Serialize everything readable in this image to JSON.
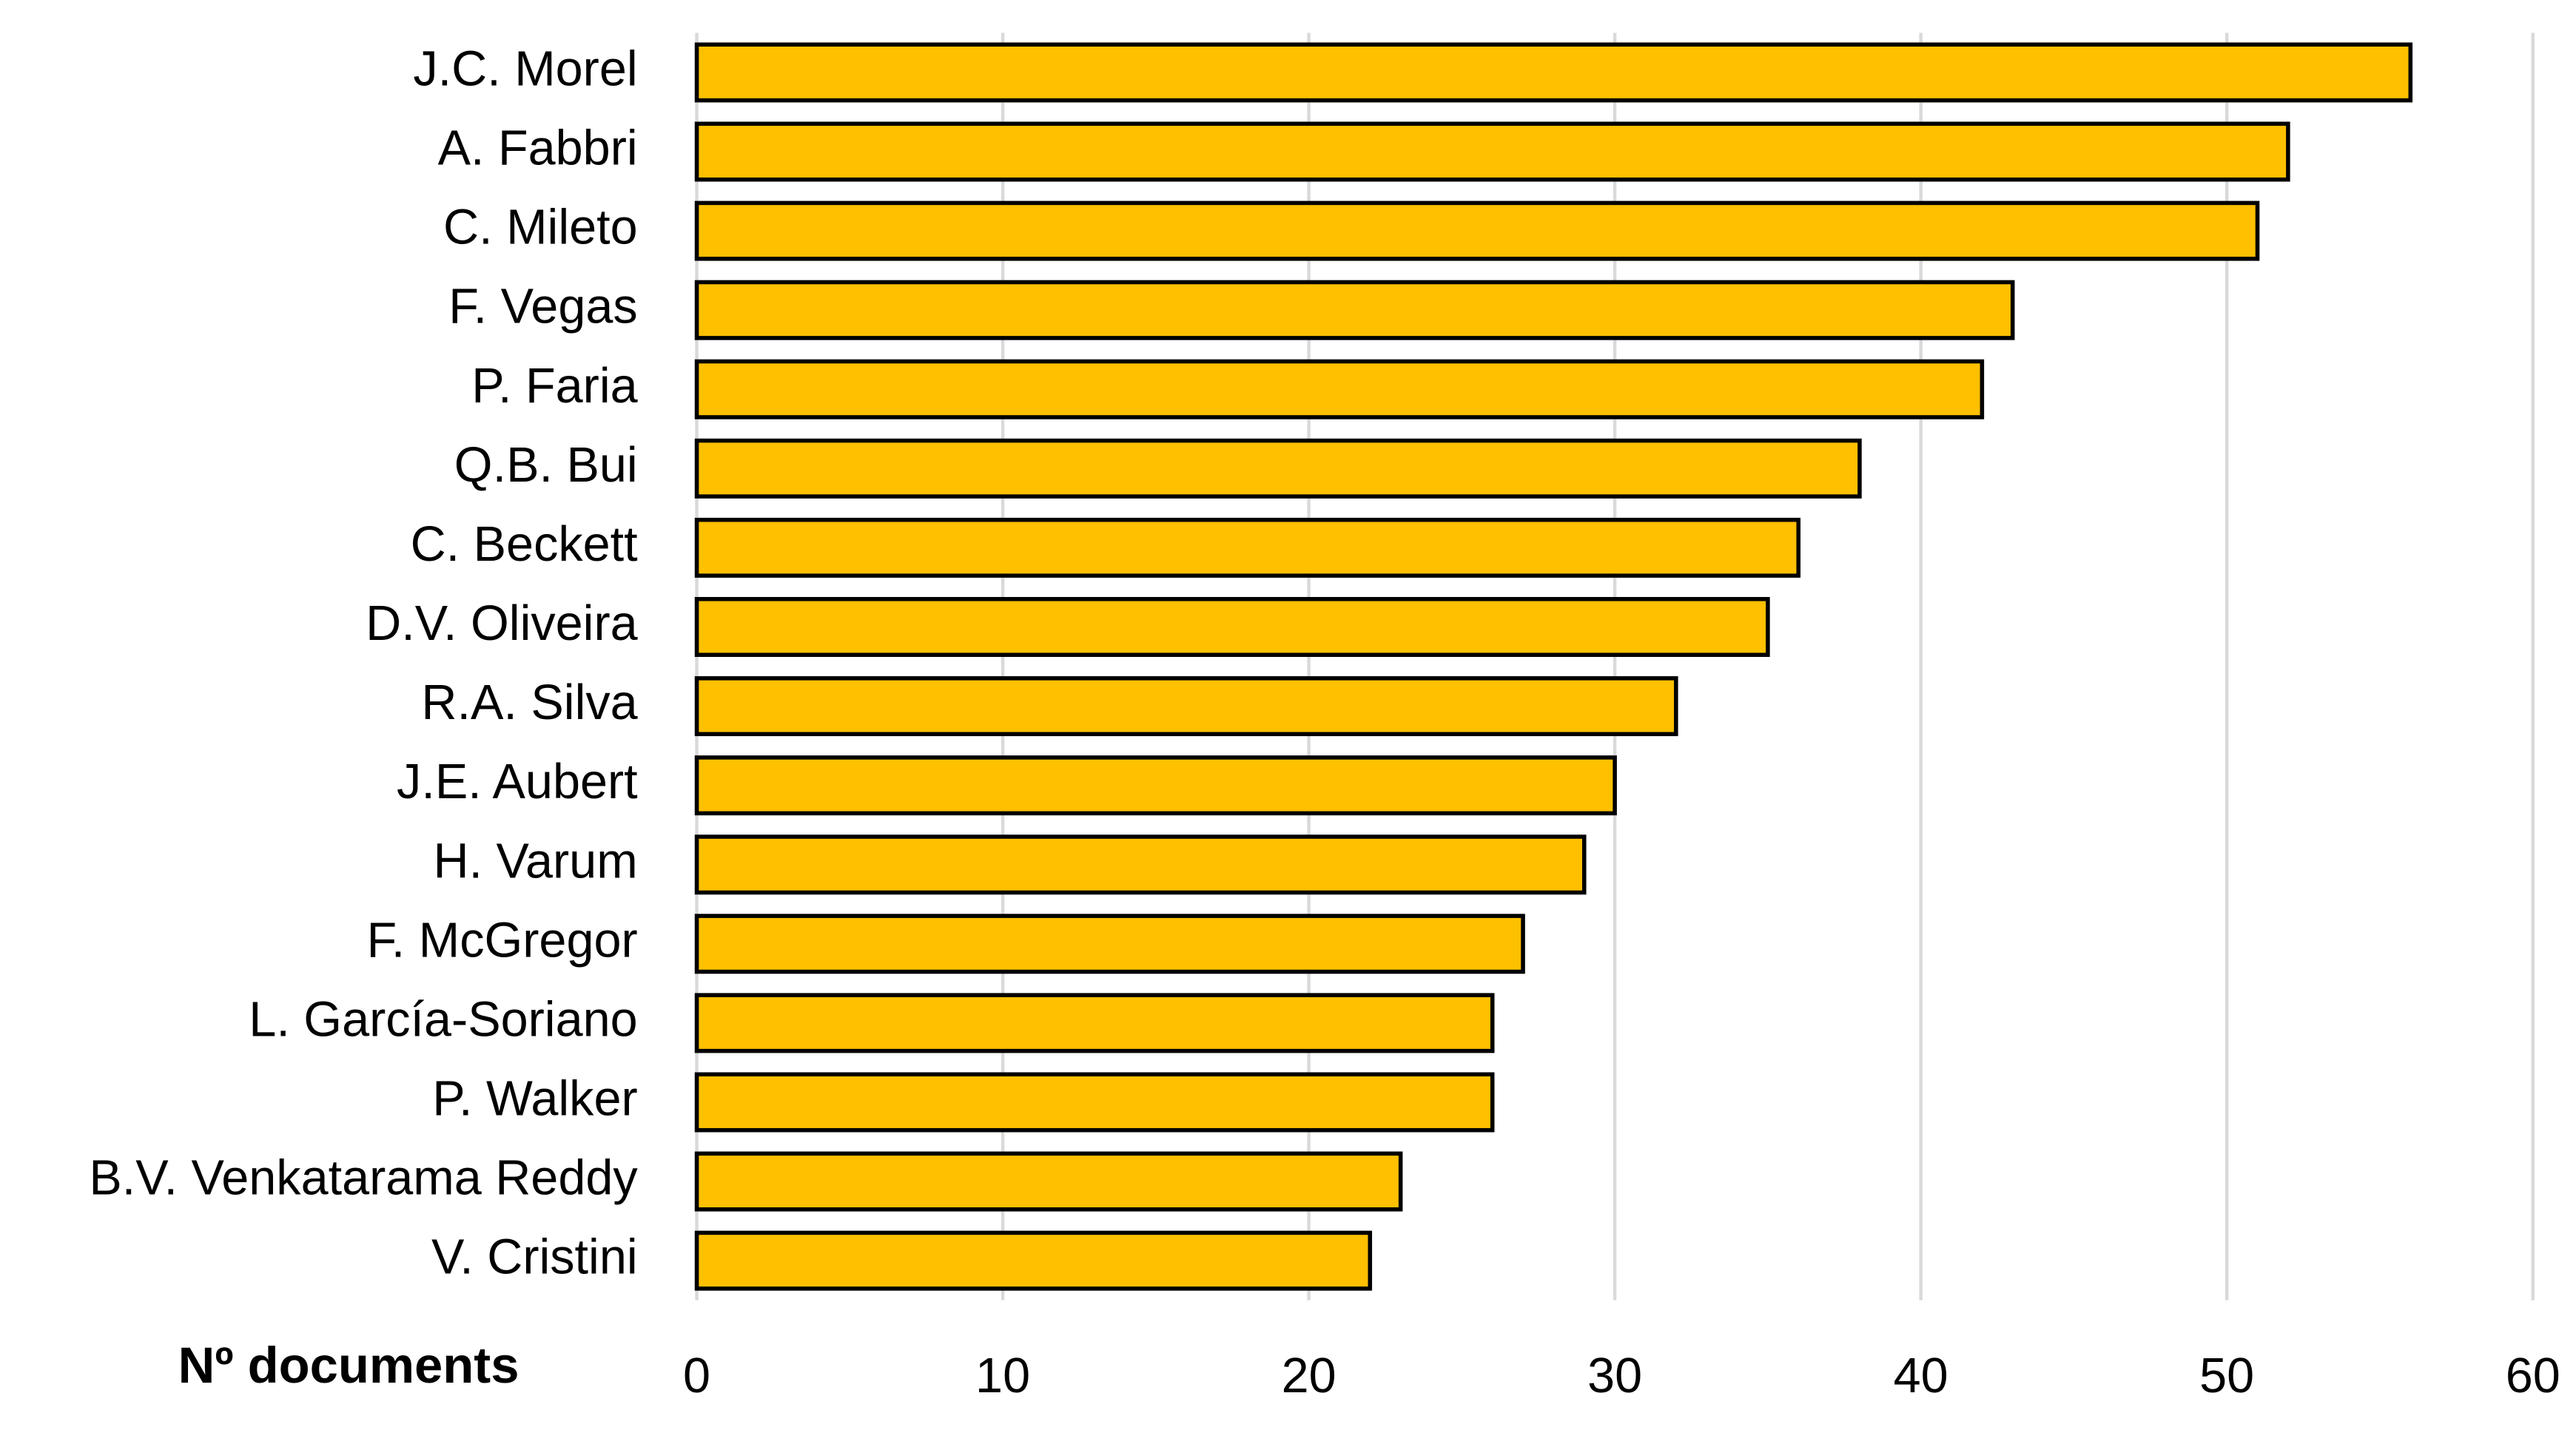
{
  "chart_data": {
    "type": "bar",
    "orientation": "horizontal",
    "x_label": "Nº documents",
    "categories": [
      "J.C. Morel",
      "A. Fabbri",
      "C. Mileto",
      "F. Vegas",
      "P. Faria",
      "Q.B. Bui",
      "C. Beckett",
      "D.V. Oliveira",
      "R.A. Silva",
      "J.E. Aubert",
      "H. Varum",
      "F. McGregor",
      "L. García-Soriano",
      "P. Walker",
      "B.V. Venkatarama Reddy",
      "V. Cristini"
    ],
    "values": [
      56,
      52,
      51,
      43,
      42,
      38,
      36,
      35,
      32,
      30,
      29,
      27,
      26,
      26,
      23,
      22
    ],
    "color": "#ffc000",
    "xlim": [
      0,
      60
    ],
    "xticks": [
      0,
      10,
      20,
      30,
      40,
      50,
      60
    ],
    "grid": true
  }
}
